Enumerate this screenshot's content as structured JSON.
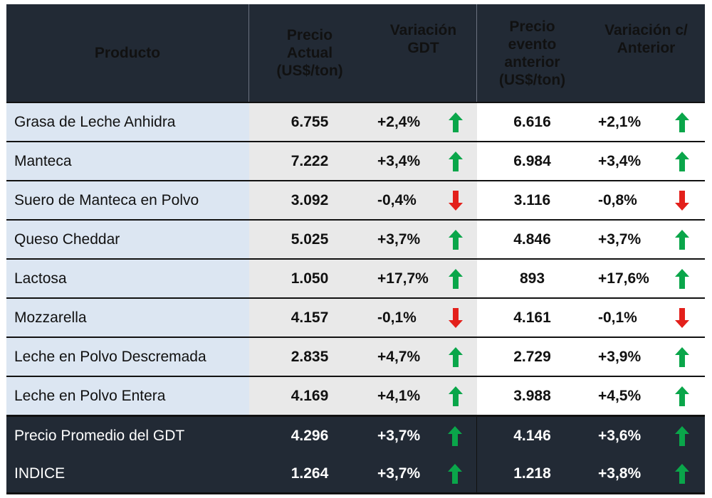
{
  "headers": [
    "Producto",
    "Precio Actual (US$/ton)",
    "Variación GDT",
    "Precio evento anterior (US$/ton)",
    "Variación c/ Anterior"
  ],
  "header_lines": {
    "producto": [
      "Producto"
    ],
    "precio_actual": [
      "Precio",
      "Actual",
      "(US$/ton)"
    ],
    "variacion_gdt": [
      "Variación",
      "GDT"
    ],
    "precio_anterior": [
      "Precio",
      "evento",
      "anterior",
      "(US$/ton)"
    ],
    "variacion_anterior": [
      "Variación c/",
      "Anterior"
    ]
  },
  "rows": [
    {
      "producto": "Grasa de Leche Anhidra",
      "precio": "6.755",
      "var_gdt": "+2,4%",
      "dir_gdt": "up",
      "precio_ant": "6.616",
      "var_ant": "+2,1%",
      "dir_ant": "up"
    },
    {
      "producto": "Manteca",
      "precio": "7.222",
      "var_gdt": "+3,4%",
      "dir_gdt": "up",
      "precio_ant": "6.984",
      "var_ant": "+3,4%",
      "dir_ant": "up"
    },
    {
      "producto": "Suero de Manteca en Polvo",
      "precio": "3.092",
      "var_gdt": "-0,4%",
      "dir_gdt": "down",
      "precio_ant": "3.116",
      "var_ant": "-0,8%",
      "dir_ant": "down"
    },
    {
      "producto": "Queso Cheddar",
      "precio": "5.025",
      "var_gdt": "+3,7%",
      "dir_gdt": "up",
      "precio_ant": "4.846",
      "var_ant": "+3,7%",
      "dir_ant": "up"
    },
    {
      "producto": "Lactosa",
      "precio": "1.050",
      "var_gdt": "+17,7%",
      "dir_gdt": "up",
      "precio_ant": "893",
      "var_ant": "+17,6%",
      "dir_ant": "up"
    },
    {
      "producto": "Mozzarella",
      "precio": "4.157",
      "var_gdt": "-0,1%",
      "dir_gdt": "down",
      "precio_ant": "4.161",
      "var_ant": "-0,1%",
      "dir_ant": "down"
    },
    {
      "producto": "Leche en Polvo Descremada",
      "precio": "2.835",
      "var_gdt": "+4,7%",
      "dir_gdt": "up",
      "precio_ant": "2.729",
      "var_ant": "+3,9%",
      "dir_ant": "up"
    },
    {
      "producto": "Leche en Polvo Entera",
      "precio": "4.169",
      "var_gdt": "+4,1%",
      "dir_gdt": "up",
      "precio_ant": "3.988",
      "var_ant": "+4,5%",
      "dir_ant": "up"
    }
  ],
  "footer_rows": [
    {
      "producto": "Precio Promedio del GDT",
      "precio": "4.296",
      "var_gdt": "+3,7%",
      "dir_gdt": "up",
      "precio_ant": "4.146",
      "var_ant": "+3,6%",
      "dir_ant": "up"
    },
    {
      "producto": "INDICE",
      "precio": "1.264",
      "var_gdt": "+3,7%",
      "dir_gdt": "up",
      "precio_ant": "1.218",
      "var_ant": "+3,8%",
      "dir_ant": "up"
    }
  ],
  "colors": {
    "header_bg": "#222a35",
    "up": "#0aa64a",
    "down": "#e3201b",
    "product_bg": "#dce6f2",
    "price_bg": "#e9e9e9"
  }
}
